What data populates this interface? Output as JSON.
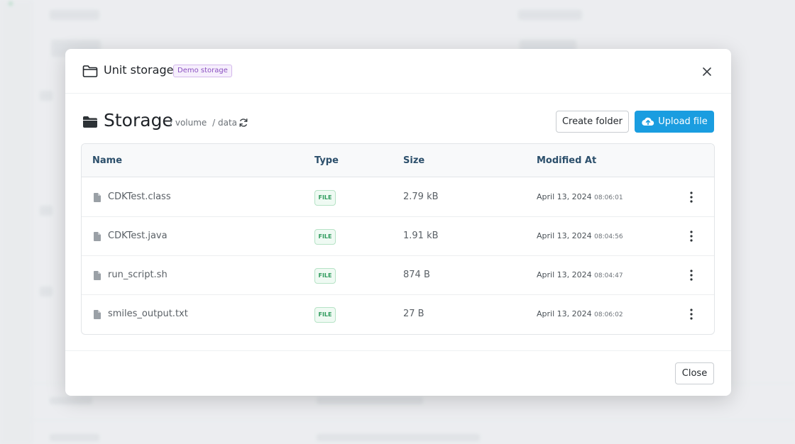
{
  "modal": {
    "title": "Unit storage",
    "badge": "Demo storage",
    "storage_title": "Storage",
    "breadcrumb": [
      "/ volume",
      "/ data"
    ],
    "create_folder_label": "Create folder",
    "upload_label": "Upload file",
    "close_label": "Close",
    "accent_color": "#1a9de0"
  },
  "table": {
    "columns": [
      "Name",
      "Type",
      "Size",
      "Modified At"
    ],
    "rows": [
      {
        "name": "CDKTest.class",
        "type": "FILE",
        "size": "2.79 kB",
        "date": "April 13, 2024",
        "time": "08:06:01"
      },
      {
        "name": "CDKTest.java",
        "type": "FILE",
        "size": "1.91 kB",
        "date": "April 13, 2024",
        "time": "08:04:56"
      },
      {
        "name": "run_script.sh",
        "type": "FILE",
        "size": "874 B",
        "date": "April 13, 2024",
        "time": "08:04:47"
      },
      {
        "name": "smiles_output.txt",
        "type": "FILE",
        "size": "27 B",
        "date": "April 13, 2024",
        "time": "08:06:02"
      }
    ]
  }
}
